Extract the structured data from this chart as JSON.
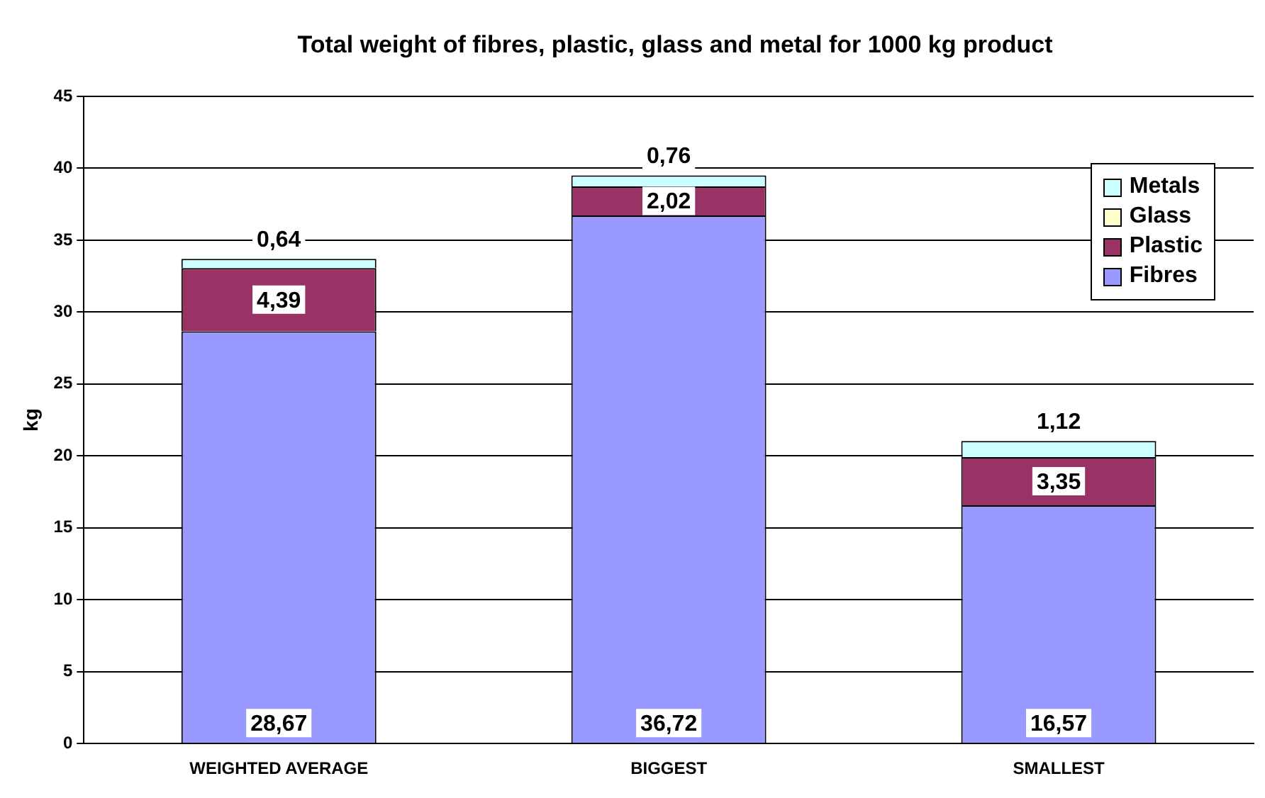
{
  "chart_data": {
    "type": "bar",
    "title": "Total weight of fibres, plastic, glass and metal for 1000 kg product",
    "ylabel": "kg",
    "categories": [
      "WEIGHTED AVERAGE",
      "BIGGEST",
      "SMALLEST"
    ],
    "stacked": true,
    "series": [
      {
        "name": "Fibres",
        "color": "#9999ff",
        "values": [
          28.67,
          36.72,
          16.57
        ],
        "value_labels": [
          "28,67",
          "36,72",
          "16,57"
        ]
      },
      {
        "name": "Plastic",
        "color": "#993366",
        "values": [
          4.39,
          2.02,
          3.35
        ],
        "value_labels": [
          "4,39",
          "2,02",
          "3,35"
        ]
      },
      {
        "name": "Glass",
        "color": "#ffffcc",
        "values": [
          0,
          0,
          0
        ],
        "value_labels": [
          null,
          null,
          null
        ]
      },
      {
        "name": "Metals",
        "color": "#ccffff",
        "values": [
          0.64,
          0.76,
          1.12
        ],
        "value_labels": [
          "0,64",
          "0,76",
          "1,12"
        ]
      }
    ],
    "ylim": [
      0,
      45
    ],
    "yticks": [
      0,
      5,
      10,
      15,
      20,
      25,
      30,
      35,
      40,
      45
    ],
    "grid": "y",
    "legend": "top right"
  }
}
